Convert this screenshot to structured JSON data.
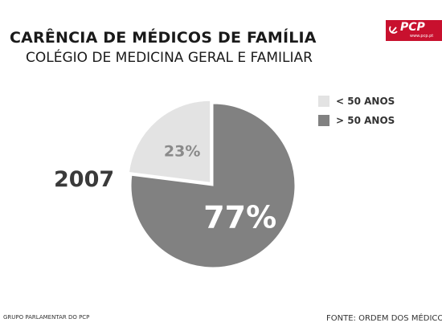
{
  "header": {
    "title": "CARÊNCIA DE MÉDICOS DE FAMÍLIA",
    "subtitle": "COLÉGIO DE MEDICINA GERAL E FAMILIAR"
  },
  "logo": {
    "text": "PCP",
    "url": "www.pcp.pt",
    "color": "#c8102e"
  },
  "year_label": "2007",
  "chart_data": {
    "type": "pie",
    "categories": [
      "< 50 ANOS",
      "> 50 ANOS"
    ],
    "values": [
      23,
      77
    ],
    "data_labels": [
      "23%",
      "77%"
    ],
    "colors": [
      "#e3e3e3",
      "#818181"
    ],
    "exploded_slice": "< 50 ANOS",
    "legend_placement": "top-right"
  },
  "footer": {
    "left": "GRUPO PARLAMENTAR DO PCP",
    "right": "FONTE: ORDEM DOS MÉDICOS"
  }
}
